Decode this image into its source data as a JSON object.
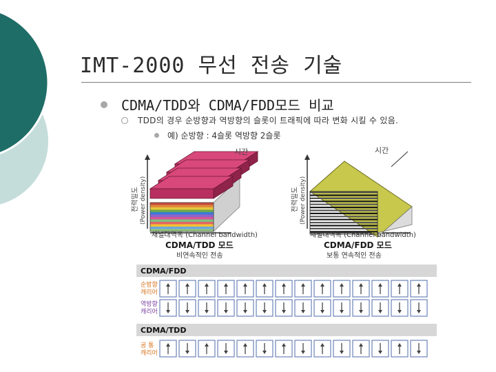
{
  "title": "IMT-2000 무선 전송 기술",
  "bullet1": "CDMA/TDD와 CDMA/FDD모드 비교",
  "bullet2": "TDD의 경우 순방향과 역방향의 슬롯이 트래픽에 따라 변화 시킬 수 있음.",
  "bullet3": "예) 순방향 : 4슬롯 역방향 2슬롯",
  "figure": {
    "time_label": "시간",
    "yaxis_kr": "전력밀도",
    "yaxis_en": "(Power density)",
    "xaxis_label": "채널대역폭 (Channel bandwidth)",
    "tdd_mode_title": "CDMA/TDD 모드",
    "tdd_mode_sub": "비연속적인 전송",
    "fdd_mode_title": "CDMA/FDD 모드",
    "fdd_mode_sub": "보통 연속적인 전송",
    "fdd_section": "CDMA/FDD",
    "forward_carrier_l1": "순방향",
    "forward_carrier_l2": "캐리어",
    "reverse_carrier_l1": "역방향",
    "reverse_carrier_l2": "캐리어",
    "tdd_section": "CDMA/TDD",
    "common_carrier_l1": "공 통",
    "common_carrier_l2": "캐리어",
    "forward_slots": 14,
    "reverse_slots": 14,
    "tdd_slots": 14,
    "tdd_slot_directions": [
      "up",
      "down",
      "up",
      "down",
      "up",
      "down",
      "up",
      "down",
      "up",
      "down",
      "up",
      "down",
      "up",
      "down"
    ]
  },
  "colors": {
    "teal": "#1f6d67",
    "light_teal": "#b9d7d4",
    "accent_orange": "#d6731c",
    "arrow_box": "#6b83b7"
  }
}
